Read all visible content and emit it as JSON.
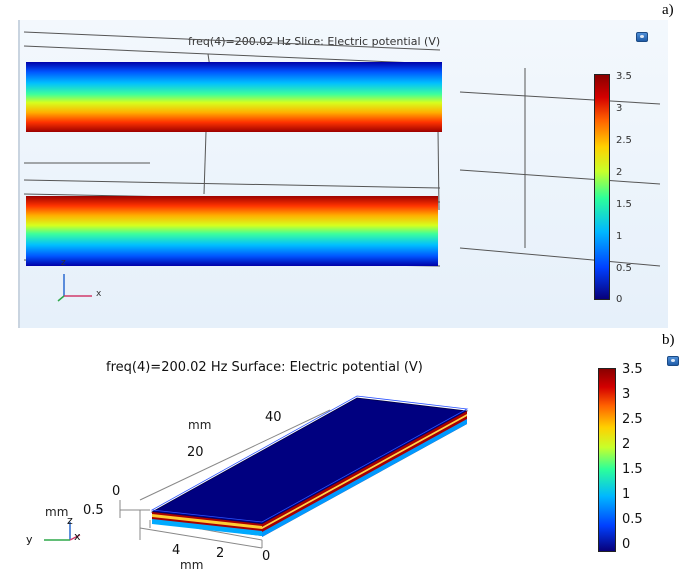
{
  "panel_a": {
    "label": "a)",
    "title": "freq(4)=200.02 Hz   Slice: Electric potential (V)",
    "colorbar_ticks": [
      "3.5",
      "3",
      "2.5",
      "2",
      "1.5",
      "1",
      "0.5",
      "0"
    ],
    "colorbar_range": [
      0,
      3.5
    ],
    "axis_z": "z",
    "axis_x": "x",
    "icon": "camera-icon"
  },
  "panel_b": {
    "label": "b)",
    "title": "freq(4)=200.02 Hz    Surface: Electric potential (V)",
    "colorbar_ticks": [
      "3.5",
      "3",
      "2.5",
      "2",
      "1.5",
      "1",
      "0.5",
      "0"
    ],
    "colorbar_range": [
      0,
      3.5
    ],
    "length_axis_ticks": [
      "40",
      "20",
      "0"
    ],
    "length_axis_unit": "mm",
    "thickness_axis_tick": "0.5",
    "thickness_axis_unit": "mm",
    "width_axis_ticks": [
      "4",
      "2",
      "0"
    ],
    "width_axis_unit": "mm",
    "axis_z": "z",
    "axis_y": "y",
    "axis_x": "x",
    "icon": "camera-icon"
  },
  "colors": {
    "surface_blue": "#000080",
    "electrode_red": "#a80000",
    "background_a": "#eaf2fb"
  }
}
